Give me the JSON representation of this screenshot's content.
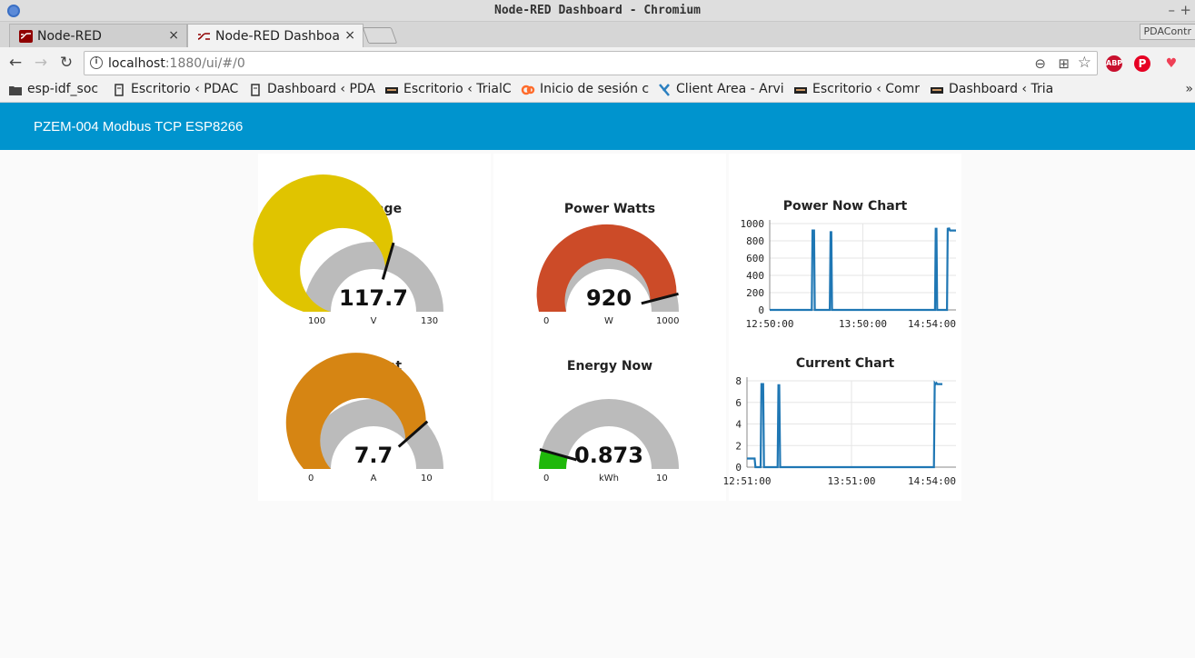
{
  "window": {
    "title": "Node-RED Dashboard - Chromium",
    "controls": [
      "–",
      "+"
    ]
  },
  "tabs": [
    {
      "label": "Node-RED",
      "close": "×"
    },
    {
      "label": "Node-RED Dashboa",
      "close": "×"
    }
  ],
  "tabstrip_right_label": "PDAContr",
  "toolbar": {
    "back": "←",
    "forward": "→",
    "reload": "↻",
    "url_host": "localhost",
    "url_rest": ":1880/ui/#/0",
    "zoom_icon": "⊖",
    "translate_icon": "⊞",
    "star_icon": "☆",
    "ext_abp": "ABP",
    "ext_pinterest": "P",
    "ext_pocket": "♥"
  },
  "bookmarks": [
    {
      "label": "esp-idf_soc"
    },
    {
      "label": "Escritorio ‹ PDAC"
    },
    {
      "label": "Dashboard ‹ PDA"
    },
    {
      "label": "Escritorio ‹ TrialC"
    },
    {
      "label": "Inicio de sesión c"
    },
    {
      "label": "Client Area - Arvi"
    },
    {
      "label": "Escritorio ‹ Comr"
    },
    {
      "label": "Dashboard ‹ Tria"
    }
  ],
  "bookmarks_more": "»",
  "dashboard": {
    "title": "PZEM-004 Modbus TCP ESP8266",
    "gauges": [
      {
        "title": "Voltage",
        "value": "117.7",
        "numeric": 117.7,
        "unit": "V",
        "min": "100",
        "max": "130",
        "minv": 100,
        "maxv": 130,
        "color": "#e0c400"
      },
      {
        "title": "Power Watts",
        "value": "920",
        "numeric": 920,
        "unit": "W",
        "min": "0",
        "max": "1000",
        "minv": 0,
        "maxv": 1000,
        "color": "#cc4b28"
      },
      {
        "title": "Current",
        "value": "7.7",
        "numeric": 7.7,
        "unit": "A",
        "min": "0",
        "max": "10",
        "minv": 0,
        "maxv": 10,
        "color": "#d68513"
      },
      {
        "title": "Energy Now",
        "value": "0.873",
        "numeric": 0.873,
        "unit": "kWh",
        "min": "0",
        "max": "10",
        "minv": 0,
        "maxv": 10,
        "color": "#1fb80a"
      }
    ]
  },
  "chart_data": [
    {
      "type": "line",
      "title": "Power Now Chart",
      "xlabel": "",
      "ylabel": "",
      "x_ticks": [
        "12:50:00",
        "13:50:00",
        "14:54:00"
      ],
      "y_ticks": [
        "0",
        "200",
        "400",
        "600",
        "800",
        "1000"
      ],
      "ylim": [
        0,
        1000
      ],
      "x_range_minutes": [
        0,
        124
      ],
      "series": [
        {
          "color": "#1f77b4",
          "x": [
            0,
            28,
            28.5,
            29.5,
            30,
            40,
            40.5,
            41,
            41.5,
            110,
            110.5,
            111,
            111.5,
            118,
            118.5,
            119,
            119.5,
            120,
            124
          ],
          "y": [
            0,
            0,
            920,
            920,
            0,
            0,
            900,
            900,
            0,
            0,
            940,
            940,
            0,
            0,
            950,
            930,
            940,
            920,
            920
          ]
        }
      ]
    },
    {
      "type": "line",
      "title": "Current Chart",
      "xlabel": "",
      "ylabel": "",
      "x_ticks": [
        "12:51:00",
        "13:51:00",
        "14:54:00"
      ],
      "y_ticks": [
        "0",
        "2",
        "4",
        "6",
        "8"
      ],
      "ylim": [
        0,
        8
      ],
      "x_range_minutes": [
        0,
        123
      ],
      "series": [
        {
          "color": "#1f77b4",
          "x": [
            0,
            4,
            4.5,
            5,
            5.5,
            8,
            8.5,
            9.5,
            10,
            18,
            18.5,
            19,
            19.5,
            110,
            110.5,
            111,
            111.5,
            112,
            114,
            115
          ],
          "y": [
            0.8,
            0.8,
            0.8,
            0,
            0,
            0,
            7.7,
            7.7,
            0,
            0,
            7.6,
            7.6,
            0,
            0,
            7.8,
            7.7,
            7.8,
            7.7,
            7.7,
            7.7
          ]
        }
      ]
    }
  ]
}
